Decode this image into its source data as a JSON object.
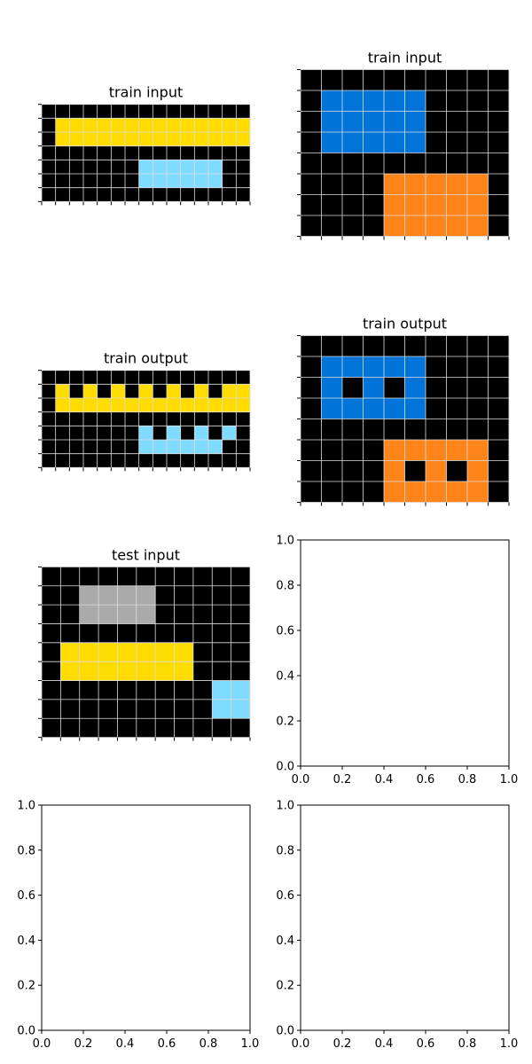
{
  "colors": {
    "0": "#000000",
    "1": "#0074D9",
    "4": "#FFDC00",
    "5": "#AAAAAA",
    "7": "#FF851B",
    "8": "#7FDBFF",
    "grid": "#DDDDDD"
  },
  "panels": [
    {
      "title": "train input",
      "grid": [
        [
          0,
          0,
          0,
          0,
          0,
          0,
          0,
          0,
          0,
          0,
          0,
          0,
          0,
          0,
          0
        ],
        [
          0,
          4,
          4,
          4,
          4,
          4,
          4,
          4,
          4,
          4,
          4,
          4,
          4,
          4,
          4
        ],
        [
          0,
          4,
          4,
          4,
          4,
          4,
          4,
          4,
          4,
          4,
          4,
          4,
          4,
          4,
          4
        ],
        [
          0,
          0,
          0,
          0,
          0,
          0,
          0,
          0,
          0,
          0,
          0,
          0,
          0,
          0,
          0
        ],
        [
          0,
          0,
          0,
          0,
          0,
          0,
          0,
          8,
          8,
          8,
          8,
          8,
          8,
          0,
          0
        ],
        [
          0,
          0,
          0,
          0,
          0,
          0,
          0,
          8,
          8,
          8,
          8,
          8,
          8,
          0,
          0
        ],
        [
          0,
          0,
          0,
          0,
          0,
          0,
          0,
          0,
          0,
          0,
          0,
          0,
          0,
          0,
          0
        ]
      ]
    },
    {
      "title": "train input",
      "grid": [
        [
          0,
          0,
          0,
          0,
          0,
          0,
          0,
          0,
          0,
          0
        ],
        [
          0,
          1,
          1,
          1,
          1,
          1,
          0,
          0,
          0,
          0
        ],
        [
          0,
          1,
          1,
          1,
          1,
          1,
          0,
          0,
          0,
          0
        ],
        [
          0,
          1,
          1,
          1,
          1,
          1,
          0,
          0,
          0,
          0
        ],
        [
          0,
          0,
          0,
          0,
          0,
          0,
          0,
          0,
          0,
          0
        ],
        [
          0,
          0,
          0,
          0,
          7,
          7,
          7,
          7,
          7,
          0
        ],
        [
          0,
          0,
          0,
          0,
          7,
          7,
          7,
          7,
          7,
          0
        ],
        [
          0,
          0,
          0,
          0,
          7,
          7,
          7,
          7,
          7,
          0
        ]
      ]
    },
    {
      "title": "train output",
      "grid": [
        [
          0,
          0,
          0,
          0,
          0,
          0,
          0,
          0,
          0,
          0,
          0,
          0,
          0,
          0,
          0
        ],
        [
          0,
          4,
          0,
          4,
          0,
          4,
          0,
          4,
          0,
          4,
          0,
          4,
          0,
          4,
          4
        ],
        [
          0,
          4,
          4,
          4,
          4,
          4,
          4,
          4,
          4,
          4,
          4,
          4,
          4,
          4,
          4
        ],
        [
          0,
          0,
          0,
          0,
          0,
          0,
          0,
          0,
          0,
          0,
          0,
          0,
          0,
          0,
          0
        ],
        [
          0,
          0,
          0,
          0,
          0,
          0,
          0,
          8,
          0,
          8,
          0,
          8,
          0,
          8,
          0
        ],
        [
          0,
          0,
          0,
          0,
          0,
          0,
          0,
          8,
          8,
          8,
          8,
          8,
          8,
          0,
          0
        ],
        [
          0,
          0,
          0,
          0,
          0,
          0,
          0,
          0,
          0,
          0,
          0,
          0,
          0,
          0,
          0
        ]
      ]
    },
    {
      "title": "train output",
      "grid": [
        [
          0,
          0,
          0,
          0,
          0,
          0,
          0,
          0,
          0,
          0
        ],
        [
          0,
          1,
          1,
          1,
          1,
          1,
          0,
          0,
          0,
          0
        ],
        [
          0,
          1,
          0,
          1,
          0,
          1,
          0,
          0,
          0,
          0
        ],
        [
          0,
          1,
          1,
          1,
          1,
          1,
          0,
          0,
          0,
          0
        ],
        [
          0,
          0,
          0,
          0,
          0,
          0,
          0,
          0,
          0,
          0
        ],
        [
          0,
          0,
          0,
          0,
          7,
          7,
          7,
          7,
          7,
          0
        ],
        [
          0,
          0,
          0,
          0,
          7,
          0,
          7,
          0,
          7,
          0
        ],
        [
          0,
          0,
          0,
          0,
          7,
          7,
          7,
          7,
          7,
          0
        ]
      ]
    },
    {
      "title": "test input",
      "grid": [
        [
          0,
          0,
          0,
          0,
          0,
          0,
          0,
          0,
          0,
          0,
          0
        ],
        [
          0,
          0,
          5,
          5,
          5,
          5,
          0,
          0,
          0,
          0,
          0
        ],
        [
          0,
          0,
          5,
          5,
          5,
          5,
          0,
          0,
          0,
          0,
          0
        ],
        [
          0,
          0,
          0,
          0,
          0,
          0,
          0,
          0,
          0,
          0,
          0
        ],
        [
          0,
          4,
          4,
          4,
          4,
          4,
          4,
          4,
          0,
          0,
          0
        ],
        [
          0,
          4,
          4,
          4,
          4,
          4,
          4,
          4,
          0,
          0,
          0
        ],
        [
          0,
          0,
          0,
          0,
          0,
          0,
          0,
          0,
          0,
          8,
          8
        ],
        [
          0,
          0,
          0,
          0,
          0,
          0,
          0,
          0,
          0,
          8,
          8
        ],
        [
          0,
          0,
          0,
          0,
          0,
          0,
          0,
          0,
          0,
          0,
          0
        ]
      ]
    }
  ],
  "empty_axes": {
    "xticks": [
      "0.0",
      "0.2",
      "0.4",
      "0.6",
      "0.8",
      "1.0"
    ],
    "yticks": [
      "0.0",
      "0.2",
      "0.4",
      "0.6",
      "0.8",
      "1.0"
    ]
  }
}
